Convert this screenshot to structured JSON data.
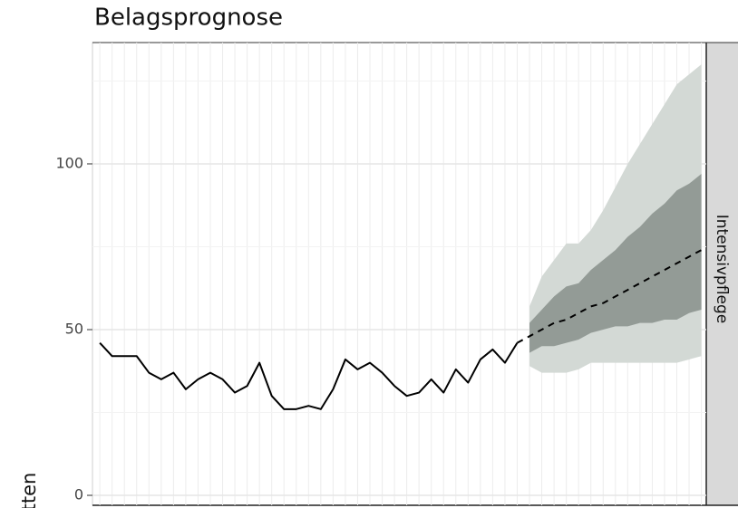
{
  "chart_data": {
    "type": "line",
    "title": "Belagsprognose",
    "y_label": "tten",
    "strip_label": "Intensivpflege",
    "xlim": [
      -0.6,
      49.4
    ],
    "ylim": [
      -3,
      136.6
    ],
    "yticks": [
      0,
      50,
      100
    ],
    "grid": true,
    "bands": [
      {
        "color": "#d3d9d5",
        "x": [
          35,
          36,
          37,
          38,
          39,
          40,
          41,
          42,
          43,
          44,
          45,
          46,
          47,
          48,
          49
        ],
        "lower": [
          39,
          37,
          37,
          37,
          38,
          40,
          40,
          40,
          40,
          40,
          40,
          40,
          40,
          41,
          42
        ],
        "upper": [
          57,
          66,
          71,
          76,
          76,
          80,
          86,
          93,
          100,
          106,
          112,
          118,
          124,
          127,
          130
        ]
      },
      {
        "color": "#939b96",
        "x": [
          35,
          36,
          37,
          38,
          39,
          40,
          41,
          42,
          43,
          44,
          45,
          46,
          47,
          48,
          49
        ],
        "lower": [
          43,
          45,
          45,
          46,
          47,
          49,
          50,
          51,
          51,
          52,
          52,
          53,
          53,
          55,
          56
        ],
        "upper": [
          52,
          56,
          60,
          63,
          64,
          68,
          71,
          74,
          78,
          81,
          85,
          88,
          92,
          94,
          97
        ]
      }
    ],
    "series": [
      {
        "color": "#000000",
        "dash": false,
        "x": [
          0,
          1,
          2,
          3,
          4,
          5,
          6,
          7,
          8,
          9,
          10,
          11,
          12,
          13,
          14,
          15,
          16,
          17,
          18,
          19,
          20,
          21,
          22,
          23,
          24,
          25,
          26,
          27,
          28,
          29,
          30,
          31,
          32,
          33,
          34
        ],
        "values": [
          46,
          42,
          42,
          42,
          37,
          35,
          37,
          32,
          35,
          37,
          35,
          31,
          33,
          40,
          30,
          26,
          26,
          27,
          26,
          32,
          41,
          38,
          40,
          37,
          33,
          30,
          31,
          35,
          31,
          38,
          34,
          41,
          44,
          40,
          46
        ]
      },
      {
        "color": "#000000",
        "dash": true,
        "x": [
          34,
          35,
          36,
          37,
          38,
          39,
          40,
          41,
          42,
          43,
          44,
          45,
          46,
          47,
          48,
          49
        ],
        "values": [
          46,
          48,
          50,
          52,
          53,
          55,
          57,
          58,
          60,
          62,
          64,
          66,
          68,
          70,
          72,
          74
        ]
      }
    ]
  }
}
